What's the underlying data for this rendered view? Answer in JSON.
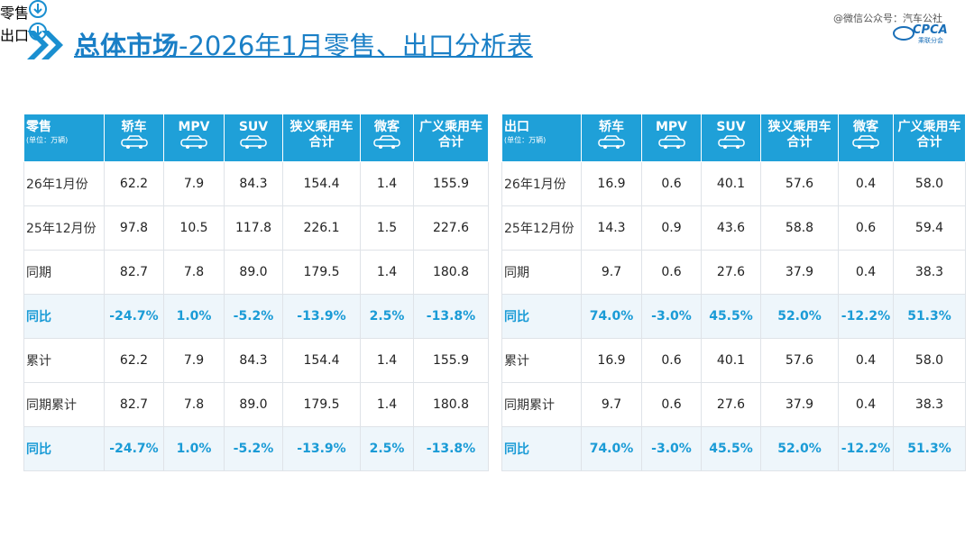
{
  "header": {
    "title_bold": "总体市场",
    "title_rest": "-2026年1月零售、出口分析表",
    "watermark": "@微信公众号：汽车公社",
    "logo_text": "CPCA",
    "logo_sub": "乘联分会"
  },
  "tables": [
    {
      "section": "零售",
      "corner": "零售",
      "unit": "(单位：万辆)",
      "columns": [
        [
          "轿车"
        ],
        [
          "MPV"
        ],
        [
          "SUV"
        ],
        [
          "狭义乘用车",
          "合计"
        ],
        [
          "微客"
        ],
        [
          "广义乘用车",
          "合计"
        ]
      ],
      "rows": [
        {
          "label": "26年1月份",
          "cells": [
            "62.2",
            "7.9",
            "84.3",
            "154.4",
            "1.4",
            "155.9"
          ]
        },
        {
          "label": "25年12月份",
          "cells": [
            "97.8",
            "10.5",
            "117.8",
            "226.1",
            "1.5",
            "227.6"
          ]
        },
        {
          "label": "同期",
          "cells": [
            "82.7",
            "7.8",
            "89.0",
            "179.5",
            "1.4",
            "180.8"
          ]
        },
        {
          "label": "同比",
          "cells": [
            "-24.7%",
            "1.0%",
            "-5.2%",
            "-13.9%",
            "2.5%",
            "-13.8%"
          ]
        },
        {
          "label": "累计",
          "cells": [
            "62.2",
            "7.9",
            "84.3",
            "154.4",
            "1.4",
            "155.9"
          ]
        },
        {
          "label": "同期累计",
          "cells": [
            "82.7",
            "7.8",
            "89.0",
            "179.5",
            "1.4",
            "180.8"
          ]
        },
        {
          "label": "同比",
          "cells": [
            "-24.7%",
            "1.0%",
            "-5.2%",
            "-13.9%",
            "2.5%",
            "-13.8%"
          ]
        }
      ]
    },
    {
      "section": "出口",
      "corner": "出口",
      "unit": "(单位：万辆)",
      "columns": [
        [
          "轿车"
        ],
        [
          "MPV"
        ],
        [
          "SUV"
        ],
        [
          "狭义乘用车",
          "合计"
        ],
        [
          "微客"
        ],
        [
          "广义乘用车",
          "合计"
        ]
      ],
      "rows": [
        {
          "label": "26年1月份",
          "cells": [
            "16.9",
            "0.6",
            "40.1",
            "57.6",
            "0.4",
            "58.0"
          ]
        },
        {
          "label": "25年12月份",
          "cells": [
            "14.3",
            "0.9",
            "43.6",
            "58.8",
            "0.6",
            "59.4"
          ]
        },
        {
          "label": "同期",
          "cells": [
            "9.7",
            "0.6",
            "27.6",
            "37.9",
            "0.4",
            "38.3"
          ]
        },
        {
          "label": "同比",
          "cells": [
            "74.0%",
            "-3.0%",
            "45.5%",
            "52.0%",
            "-12.2%",
            "51.3%"
          ]
        },
        {
          "label": "累计",
          "cells": [
            "16.9",
            "0.6",
            "40.1",
            "57.6",
            "0.4",
            "58.0"
          ]
        },
        {
          "label": "同期累计",
          "cells": [
            "9.7",
            "0.6",
            "27.6",
            "37.9",
            "0.4",
            "38.3"
          ]
        },
        {
          "label": "同比",
          "cells": [
            "74.0%",
            "-3.0%",
            "45.5%",
            "52.0%",
            "-12.2%",
            "51.3%"
          ]
        }
      ]
    }
  ]
}
